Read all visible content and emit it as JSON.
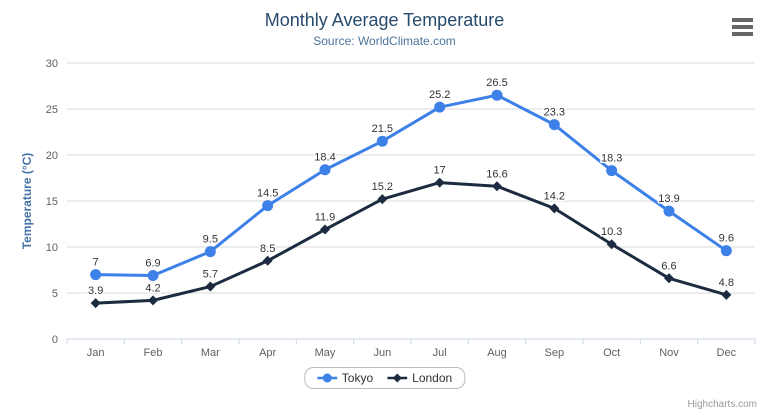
{
  "chart_data": {
    "type": "line",
    "title": "Monthly Average Temperature",
    "subtitle": "Source: WorldClimate.com",
    "categories": [
      "Jan",
      "Feb",
      "Mar",
      "Apr",
      "May",
      "Jun",
      "Jul",
      "Aug",
      "Sep",
      "Oct",
      "Nov",
      "Dec"
    ],
    "series": [
      {
        "name": "Tokyo",
        "marker": "circle",
        "color": "#3c80e8",
        "values": [
          7.0,
          6.9,
          9.5,
          14.5,
          18.4,
          21.5,
          25.2,
          26.5,
          23.3,
          18.3,
          13.9,
          9.6
        ]
      },
      {
        "name": "London",
        "marker": "diamond",
        "color": "#1c2b40",
        "values": [
          3.9,
          4.2,
          5.7,
          8.5,
          11.9,
          15.2,
          17.0,
          16.6,
          14.2,
          10.3,
          6.6,
          4.8
        ]
      }
    ],
    "xlabel": "",
    "ylabel": "Temperature (°C)",
    "ylim": [
      0,
      30
    ],
    "yticks": [
      0,
      5,
      10,
      15,
      20,
      25,
      30
    ],
    "grid": true,
    "legend_position": "bottom",
    "data_labels": true
  },
  "credits": {
    "label": "Highcharts.com"
  },
  "colors": {
    "title": "#274b6d",
    "subtitle": "#4d759e",
    "axis_title": "#4572a7",
    "tick_label": "#606060",
    "gridline": "#d8d8d8",
    "axis_line": "#ccd6eb",
    "data_label": "#333333",
    "legend_text": "#333333",
    "credits": "#999999",
    "menu_icon": "#666666"
  }
}
